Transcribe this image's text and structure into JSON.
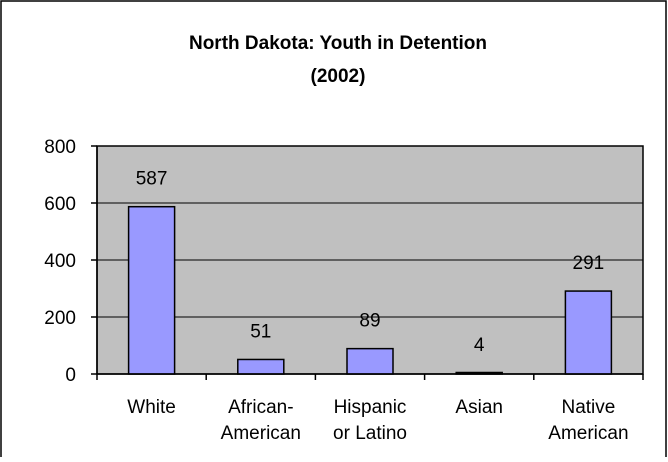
{
  "chart_data": {
    "type": "bar",
    "title": "North Dakota: Youth in Detention",
    "subtitle": "(2002)",
    "categories": [
      [
        "White"
      ],
      [
        "African-",
        "American"
      ],
      [
        "Hispanic",
        "or Latino"
      ],
      [
        "Asian"
      ],
      [
        "Native",
        "American"
      ]
    ],
    "values": [
      587,
      51,
      89,
      4,
      291
    ],
    "data_labels": [
      "587",
      "51",
      "89",
      "4",
      "291"
    ],
    "yticks": [
      0,
      200,
      400,
      600,
      800
    ],
    "ytick_labels": [
      "0",
      "200",
      "400",
      "600",
      "800"
    ],
    "ylim": [
      0,
      800
    ],
    "grid": true,
    "legend": "none",
    "colors": {
      "plot_background": "#c0c0c0",
      "bar_fill": "#9999ff",
      "bar_stroke": "#000000",
      "gridline": "#000000",
      "frame": "#000000"
    }
  }
}
